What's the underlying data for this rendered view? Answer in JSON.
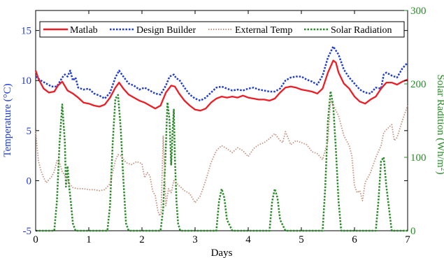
{
  "colors": {
    "matlab": "#ee1c25",
    "design_builder": "#1f3bd6",
    "external_temp": "#c4917f",
    "solar_radiation": "#2a8a2a",
    "left_axis": "#1f3bd6",
    "right_axis": "#2a8a2a",
    "frame": "#000000"
  },
  "chart_data": {
    "type": "line",
    "title": "",
    "xlabel": "Days",
    "ylabel": "Temperature (°C)",
    "y2label_main": "Solar Radition (Wh/m",
    "y2label_sup": "2",
    "y2label_end": ")",
    "xlim": [
      0,
      7
    ],
    "ylim": [
      -5,
      17
    ],
    "y2lim": [
      0,
      300
    ],
    "x_ticks": [
      0,
      1,
      2,
      3,
      4,
      5,
      6,
      7
    ],
    "y_ticks": [
      -5,
      0,
      5,
      10,
      15
    ],
    "y2_ticks": [
      0,
      100,
      200,
      300
    ],
    "grid": false,
    "legend_position": "top",
    "legend": [
      "Matlab",
      "Design Builder",
      "External Temp",
      "Solar Radiation"
    ],
    "series": [
      {
        "name": "Matlab",
        "axis": "left",
        "style": "solid",
        "x": [
          0,
          0.05,
          0.15,
          0.25,
          0.35,
          0.42,
          0.5,
          0.6,
          0.7,
          0.8,
          0.9,
          1.0,
          1.1,
          1.2,
          1.3,
          1.4,
          1.5,
          1.57,
          1.65,
          1.75,
          1.85,
          1.95,
          2.05,
          2.15,
          2.25,
          2.35,
          2.45,
          2.55,
          2.62,
          2.7,
          2.8,
          2.9,
          3.0,
          3.1,
          3.2,
          3.3,
          3.4,
          3.5,
          3.6,
          3.7,
          3.8,
          3.9,
          4.0,
          4.1,
          4.2,
          4.3,
          4.4,
          4.5,
          4.6,
          4.7,
          4.8,
          4.9,
          5.0,
          5.1,
          5.2,
          5.3,
          5.4,
          5.5,
          5.6,
          5.65,
          5.7,
          5.8,
          5.9,
          6.0,
          6.1,
          6.2,
          6.3,
          6.4,
          6.5,
          6.6,
          6.7,
          6.8,
          6.9,
          7.0
        ],
        "y": [
          11.0,
          10.2,
          9.2,
          8.8,
          8.9,
          9.5,
          9.9,
          9.0,
          8.7,
          8.3,
          7.8,
          7.7,
          7.5,
          7.4,
          7.6,
          8.3,
          9.3,
          9.8,
          9.2,
          8.6,
          8.3,
          8.0,
          7.8,
          7.5,
          7.2,
          7.5,
          8.8,
          9.5,
          9.4,
          8.7,
          8.0,
          7.5,
          7.1,
          7.0,
          7.2,
          7.8,
          8.2,
          8.4,
          8.3,
          8.4,
          8.3,
          8.5,
          8.3,
          8.2,
          8.1,
          8.1,
          8.0,
          8.2,
          8.8,
          9.3,
          9.4,
          9.3,
          9.1,
          9.0,
          8.9,
          8.7,
          9.2,
          10.8,
          12.0,
          11.8,
          10.8,
          9.7,
          9.2,
          8.4,
          7.9,
          7.7,
          8.1,
          8.4,
          9.2,
          9.8,
          9.8,
          9.6,
          9.9,
          10.1
        ]
      },
      {
        "name": "Design Builder",
        "axis": "left",
        "style": "dotted",
        "x": [
          0,
          0.1,
          0.2,
          0.3,
          0.4,
          0.5,
          0.55,
          0.6,
          0.65,
          0.7,
          0.75,
          0.8,
          0.9,
          1.0,
          1.1,
          1.2,
          1.3,
          1.4,
          1.5,
          1.57,
          1.65,
          1.75,
          1.85,
          1.95,
          2.05,
          2.15,
          2.25,
          2.35,
          2.45,
          2.52,
          2.6,
          2.65,
          2.7,
          2.8,
          2.9,
          3.0,
          3.1,
          3.2,
          3.3,
          3.4,
          3.5,
          3.6,
          3.7,
          3.8,
          3.9,
          4.0,
          4.1,
          4.2,
          4.3,
          4.4,
          4.5,
          4.6,
          4.7,
          4.8,
          4.9,
          5.0,
          5.1,
          5.2,
          5.3,
          5.4,
          5.5,
          5.6,
          5.65,
          5.7,
          5.8,
          5.9,
          6.0,
          6.1,
          6.2,
          6.3,
          6.4,
          6.5,
          6.55,
          6.6,
          6.7,
          6.8,
          6.9,
          7.0
        ],
        "y": [
          10.4,
          10.0,
          9.7,
          9.4,
          9.4,
          10.3,
          10.6,
          10.4,
          11.0,
          10.0,
          10.3,
          9.3,
          9.1,
          9.2,
          8.7,
          8.5,
          8.2,
          8.8,
          10.3,
          11.0,
          10.4,
          9.7,
          9.5,
          9.1,
          9.3,
          9.0,
          8.7,
          8.6,
          9.5,
          10.4,
          10.6,
          10.2,
          10.1,
          9.3,
          8.6,
          8.2,
          8.0,
          8.3,
          8.8,
          9.3,
          9.4,
          9.2,
          9.0,
          9.1,
          9.0,
          9.2,
          9.3,
          9.1,
          9.0,
          8.9,
          8.9,
          9.2,
          10.0,
          10.3,
          10.4,
          10.4,
          10.1,
          9.9,
          9.6,
          10.5,
          12.3,
          13.4,
          13.0,
          12.6,
          11.1,
          10.3,
          9.7,
          9.1,
          8.8,
          8.7,
          9.3,
          9.2,
          10.6,
          10.8,
          10.5,
          10.3,
          11.2,
          11.8
        ]
      },
      {
        "name": "External Temp",
        "axis": "left",
        "style": "dotted",
        "x": [
          0,
          0.05,
          0.1,
          0.15,
          0.2,
          0.25,
          0.3,
          0.35,
          0.4,
          0.45,
          0.5,
          0.55,
          0.6,
          0.65,
          0.7,
          0.8,
          0.9,
          1.0,
          1.1,
          1.2,
          1.3,
          1.4,
          1.5,
          1.55,
          1.6,
          1.7,
          1.8,
          1.9,
          2.0,
          2.05,
          2.1,
          2.15,
          2.2,
          2.25,
          2.3,
          2.33,
          2.36,
          2.4,
          2.45,
          2.5,
          2.55,
          2.6,
          2.7,
          2.8,
          2.9,
          3.0,
          3.1,
          3.2,
          3.3,
          3.4,
          3.5,
          3.6,
          3.7,
          3.8,
          3.9,
          4.0,
          4.1,
          4.2,
          4.3,
          4.4,
          4.5,
          4.6,
          4.65,
          4.7,
          4.8,
          4.9,
          5.0,
          5.1,
          5.2,
          5.3,
          5.4,
          5.5,
          5.55,
          5.6,
          5.65,
          5.7,
          5.8,
          5.9,
          5.95,
          6.0,
          6.05,
          6.1,
          6.15,
          6.2,
          6.3,
          6.4,
          6.5,
          6.55,
          6.6,
          6.7,
          6.75,
          6.8,
          6.9,
          7.0
        ],
        "y": [
          5.0,
          2.0,
          1.0,
          0.3,
          -0.2,
          0.1,
          0.4,
          0.9,
          2.0,
          1.8,
          0.9,
          0.5,
          0.0,
          -0.4,
          -0.7,
          -0.8,
          -0.8,
          -0.9,
          -0.9,
          -1.0,
          -0.9,
          -0.3,
          2.0,
          2.6,
          2.5,
          1.8,
          1.6,
          1.9,
          1.7,
          0.3,
          0.8,
          0.5,
          -1.0,
          -1.5,
          -3.0,
          -3.5,
          -3.2,
          4.5,
          -2.5,
          -0.8,
          -1.2,
          0.0,
          -0.5,
          -1.0,
          -1.3,
          -2.2,
          -1.5,
          0.0,
          1.8,
          3.0,
          3.5,
          3.2,
          2.8,
          3.3,
          3.0,
          2.4,
          3.2,
          3.6,
          3.8,
          4.2,
          4.7,
          4.0,
          3.8,
          4.9,
          3.6,
          4.0,
          3.8,
          3.6,
          2.9,
          2.7,
          2.1,
          4.0,
          8.0,
          7.6,
          7.0,
          6.5,
          4.5,
          3.5,
          2.5,
          -0.5,
          -1.2,
          -1.0,
          -2.0,
          -0.2,
          0.8,
          2.3,
          3.5,
          4.8,
          5.1,
          5.6,
          4.0,
          4.3,
          6.0,
          7.5
        ]
      },
      {
        "name": "Solar Radiation",
        "axis": "right",
        "style": "dotted",
        "x": [
          0,
          0.35,
          0.4,
          0.45,
          0.5,
          0.55,
          0.57,
          0.6,
          0.63,
          0.66,
          0.7,
          0.75,
          0.8,
          1.3,
          1.35,
          1.4,
          1.45,
          1.5,
          1.55,
          1.6,
          1.65,
          1.7,
          1.75,
          1.8,
          2.3,
          2.35,
          2.4,
          2.45,
          2.48,
          2.52,
          2.55,
          2.58,
          2.6,
          2.62,
          2.65,
          2.68,
          2.72,
          2.75,
          2.8,
          3.3,
          3.4,
          3.45,
          3.5,
          3.55,
          3.6,
          3.7,
          4.3,
          4.4,
          4.45,
          4.5,
          4.55,
          4.6,
          4.7,
          5.3,
          5.4,
          5.45,
          5.5,
          5.55,
          5.6,
          5.65,
          5.7,
          5.75,
          6.3,
          6.4,
          6.45,
          6.5,
          6.55,
          6.6,
          6.7,
          7.0
        ],
        "y": [
          0,
          0,
          40,
          120,
          172,
          120,
          60,
          88,
          60,
          40,
          10,
          0,
          0,
          0,
          0,
          35,
          120,
          180,
          185,
          140,
          70,
          10,
          0,
          0,
          0,
          0,
          30,
          115,
          175,
          150,
          90,
          140,
          165,
          100,
          40,
          10,
          0,
          0,
          0,
          0,
          0,
          40,
          57,
          45,
          15,
          0,
          0,
          0,
          40,
          57,
          45,
          15,
          0,
          0,
          0,
          60,
          150,
          190,
          170,
          110,
          40,
          0,
          0,
          0,
          40,
          95,
          100,
          60,
          0,
          0
        ]
      }
    ]
  }
}
